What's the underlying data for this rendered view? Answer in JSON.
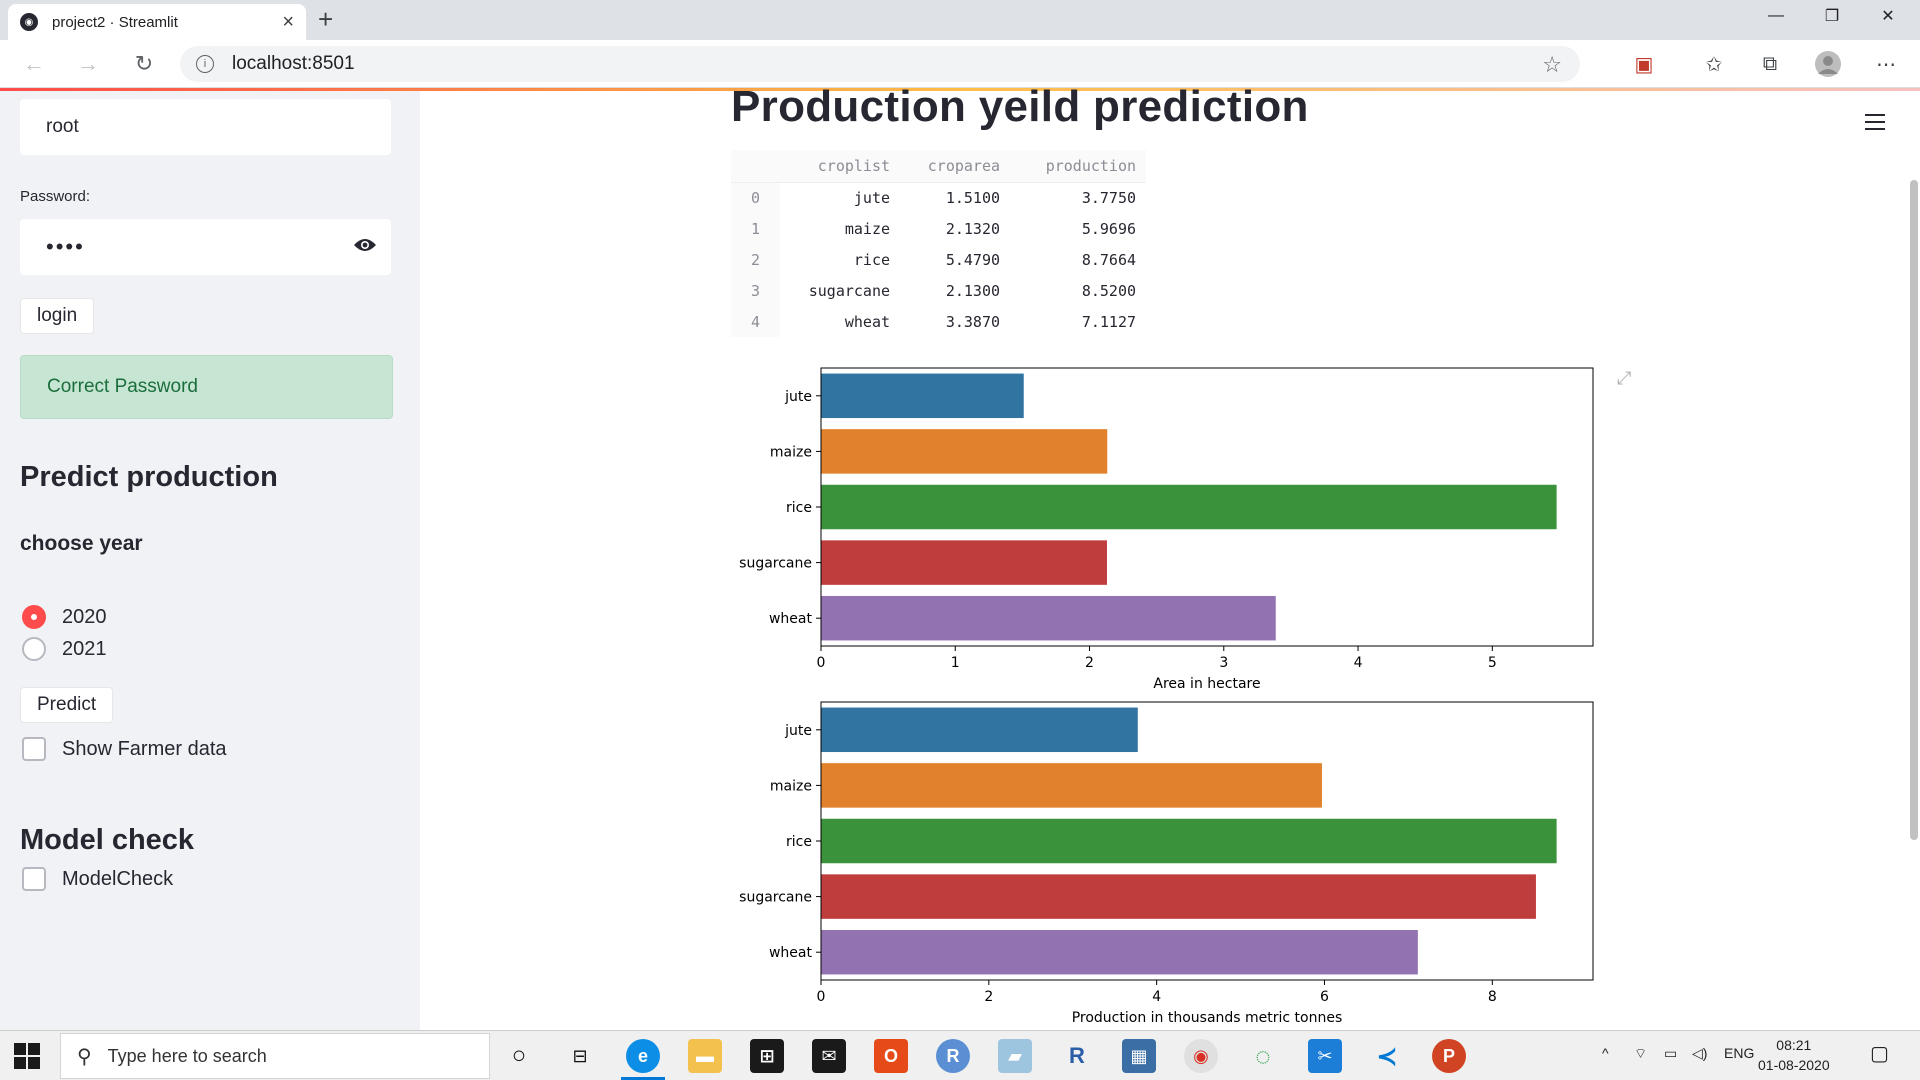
{
  "browser": {
    "tab_title": "project2 · Streamlit",
    "url": "localhost:8501"
  },
  "sidebar": {
    "username_value": "root",
    "password_label": "Password:",
    "password_value": "••••",
    "login_button": "login",
    "success_message": "Correct Password",
    "predict_heading": "Predict production",
    "year_label": "choose year",
    "year_options": [
      {
        "label": "2020",
        "selected": true
      },
      {
        "label": "2021",
        "selected": false
      }
    ],
    "predict_button": "Predict",
    "show_farmer_label": "Show Farmer data",
    "model_heading": "Model check",
    "model_check_label": "ModelCheck"
  },
  "main": {
    "title": "Production yeild prediction",
    "table": {
      "columns": [
        "croplist",
        "croparea",
        "production"
      ],
      "rows": [
        {
          "index": "0",
          "croplist": "jute",
          "croparea": "1.5100",
          "production": "3.7750"
        },
        {
          "index": "1",
          "croplist": "maize",
          "croparea": "2.1320",
          "production": "5.9696"
        },
        {
          "index": "2",
          "croplist": "rice",
          "croparea": "5.4790",
          "production": "8.7664"
        },
        {
          "index": "3",
          "croplist": "sugarcane",
          "croparea": "2.1300",
          "production": "8.5200"
        },
        {
          "index": "4",
          "croplist": "wheat",
          "croparea": "3.3870",
          "production": "7.1127"
        }
      ]
    }
  },
  "chart_data": [
    {
      "type": "bar",
      "orientation": "horizontal",
      "categories": [
        "jute",
        "maize",
        "rice",
        "sugarcane",
        "wheat"
      ],
      "values": [
        1.51,
        2.132,
        5.479,
        2.13,
        3.387
      ],
      "colors": [
        "#3274a1",
        "#e1812c",
        "#3a923a",
        "#c03d3e",
        "#9372b2"
      ],
      "xlabel": "Area in hectare",
      "ylabel": "",
      "xlim": [
        0,
        5.75
      ],
      "xticks": [
        0,
        1,
        2,
        3,
        4,
        5
      ]
    },
    {
      "type": "bar",
      "orientation": "horizontal",
      "categories": [
        "jute",
        "maize",
        "rice",
        "sugarcane",
        "wheat"
      ],
      "values": [
        3.775,
        5.9696,
        8.7664,
        8.52,
        7.1127
      ],
      "colors": [
        "#3274a1",
        "#e1812c",
        "#3a923a",
        "#c03d3e",
        "#9372b2"
      ],
      "xlabel": "Production in thousands metric tonnes",
      "ylabel": "",
      "xlim": [
        0,
        9.2
      ],
      "xticks": [
        0,
        2,
        4,
        6,
        8
      ]
    }
  ],
  "taskbar": {
    "search_placeholder": "Type here to search",
    "language": "ENG",
    "time": "08:21",
    "date": "01-08-2020"
  }
}
